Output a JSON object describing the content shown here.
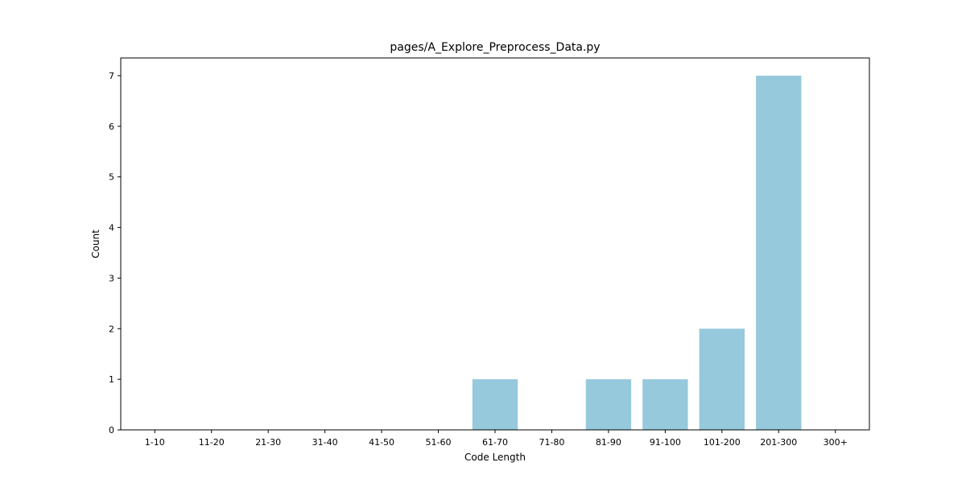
{
  "chart_data": {
    "type": "bar",
    "title": "pages/A_Explore_Preprocess_Data.py",
    "xlabel": "Code Length",
    "ylabel": "Count",
    "categories": [
      "1-10",
      "11-20",
      "21-30",
      "31-40",
      "41-50",
      "51-60",
      "61-70",
      "71-80",
      "81-90",
      "91-100",
      "101-200",
      "201-300",
      "300+"
    ],
    "values": [
      0,
      0,
      0,
      0,
      0,
      0,
      1,
      0,
      1,
      1,
      2,
      7,
      0
    ],
    "ylim": [
      0,
      7.35
    ],
    "yticks": [
      0,
      1,
      2,
      3,
      4,
      5,
      6,
      7
    ],
    "grid": false,
    "bar_color": "#96c9dc"
  }
}
